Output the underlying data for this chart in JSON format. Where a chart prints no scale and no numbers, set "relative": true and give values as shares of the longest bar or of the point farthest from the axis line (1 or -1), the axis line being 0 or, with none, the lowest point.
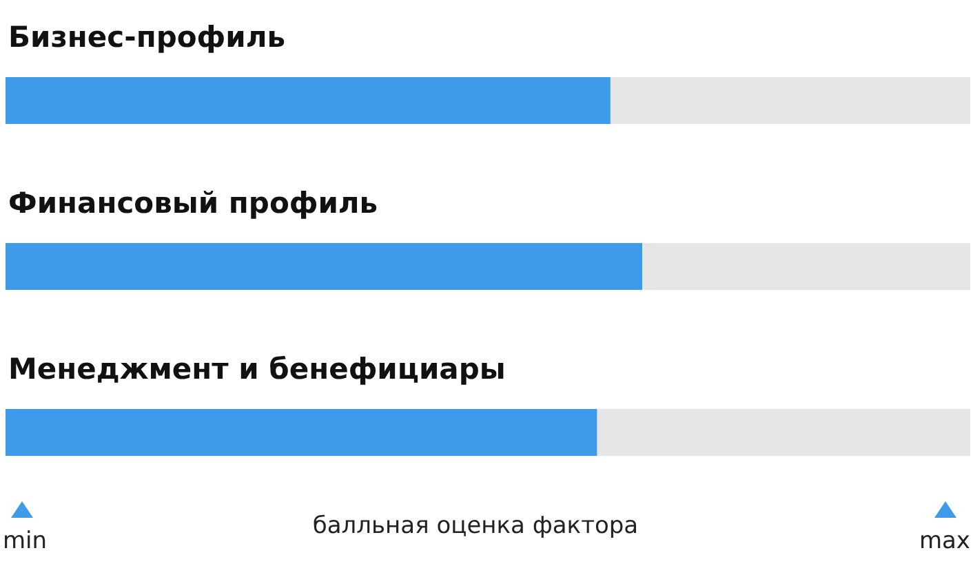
{
  "chart_data": {
    "type": "bar",
    "orientation": "horizontal",
    "relative": true,
    "categories": [
      "Бизнес-профиль",
      "Финансовый профиль",
      "Менеджмент и бенефициары"
    ],
    "values": [
      0.95,
      1,
      0.929
    ],
    "color": "#3d9be9",
    "xlabel": "балльная оценка фактора",
    "annotations": [
      "min",
      "max"
    ]
  }
}
